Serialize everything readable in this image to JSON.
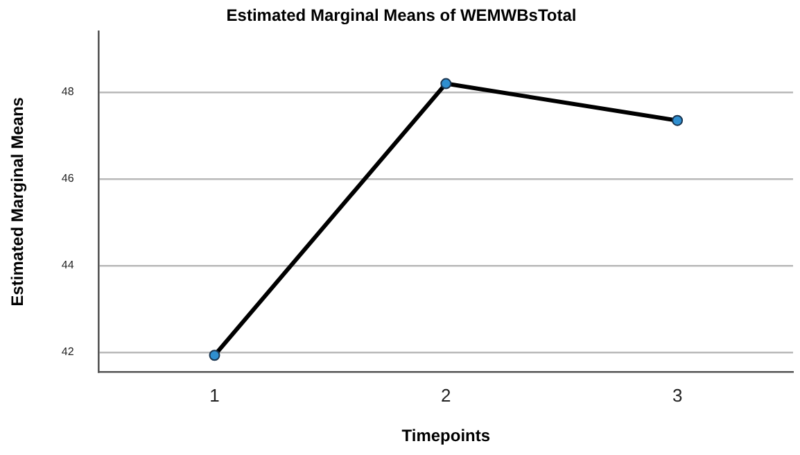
{
  "chart_data": {
    "type": "line",
    "title": "Estimated Marginal Means of WEMWBsTotal",
    "xlabel": "Timepoints",
    "ylabel": "Estimated Marginal Means",
    "categories": [
      "1",
      "2",
      "3"
    ],
    "series": [
      {
        "color": "#000000",
        "values": [
          41.93,
          48.2,
          47.35
        ]
      }
    ],
    "ylim": [
      41.55,
      49.4
    ],
    "yticks": [
      42,
      44,
      46,
      48
    ],
    "grid": "y",
    "legend": false,
    "marker": "circle",
    "line_style": "solid"
  }
}
